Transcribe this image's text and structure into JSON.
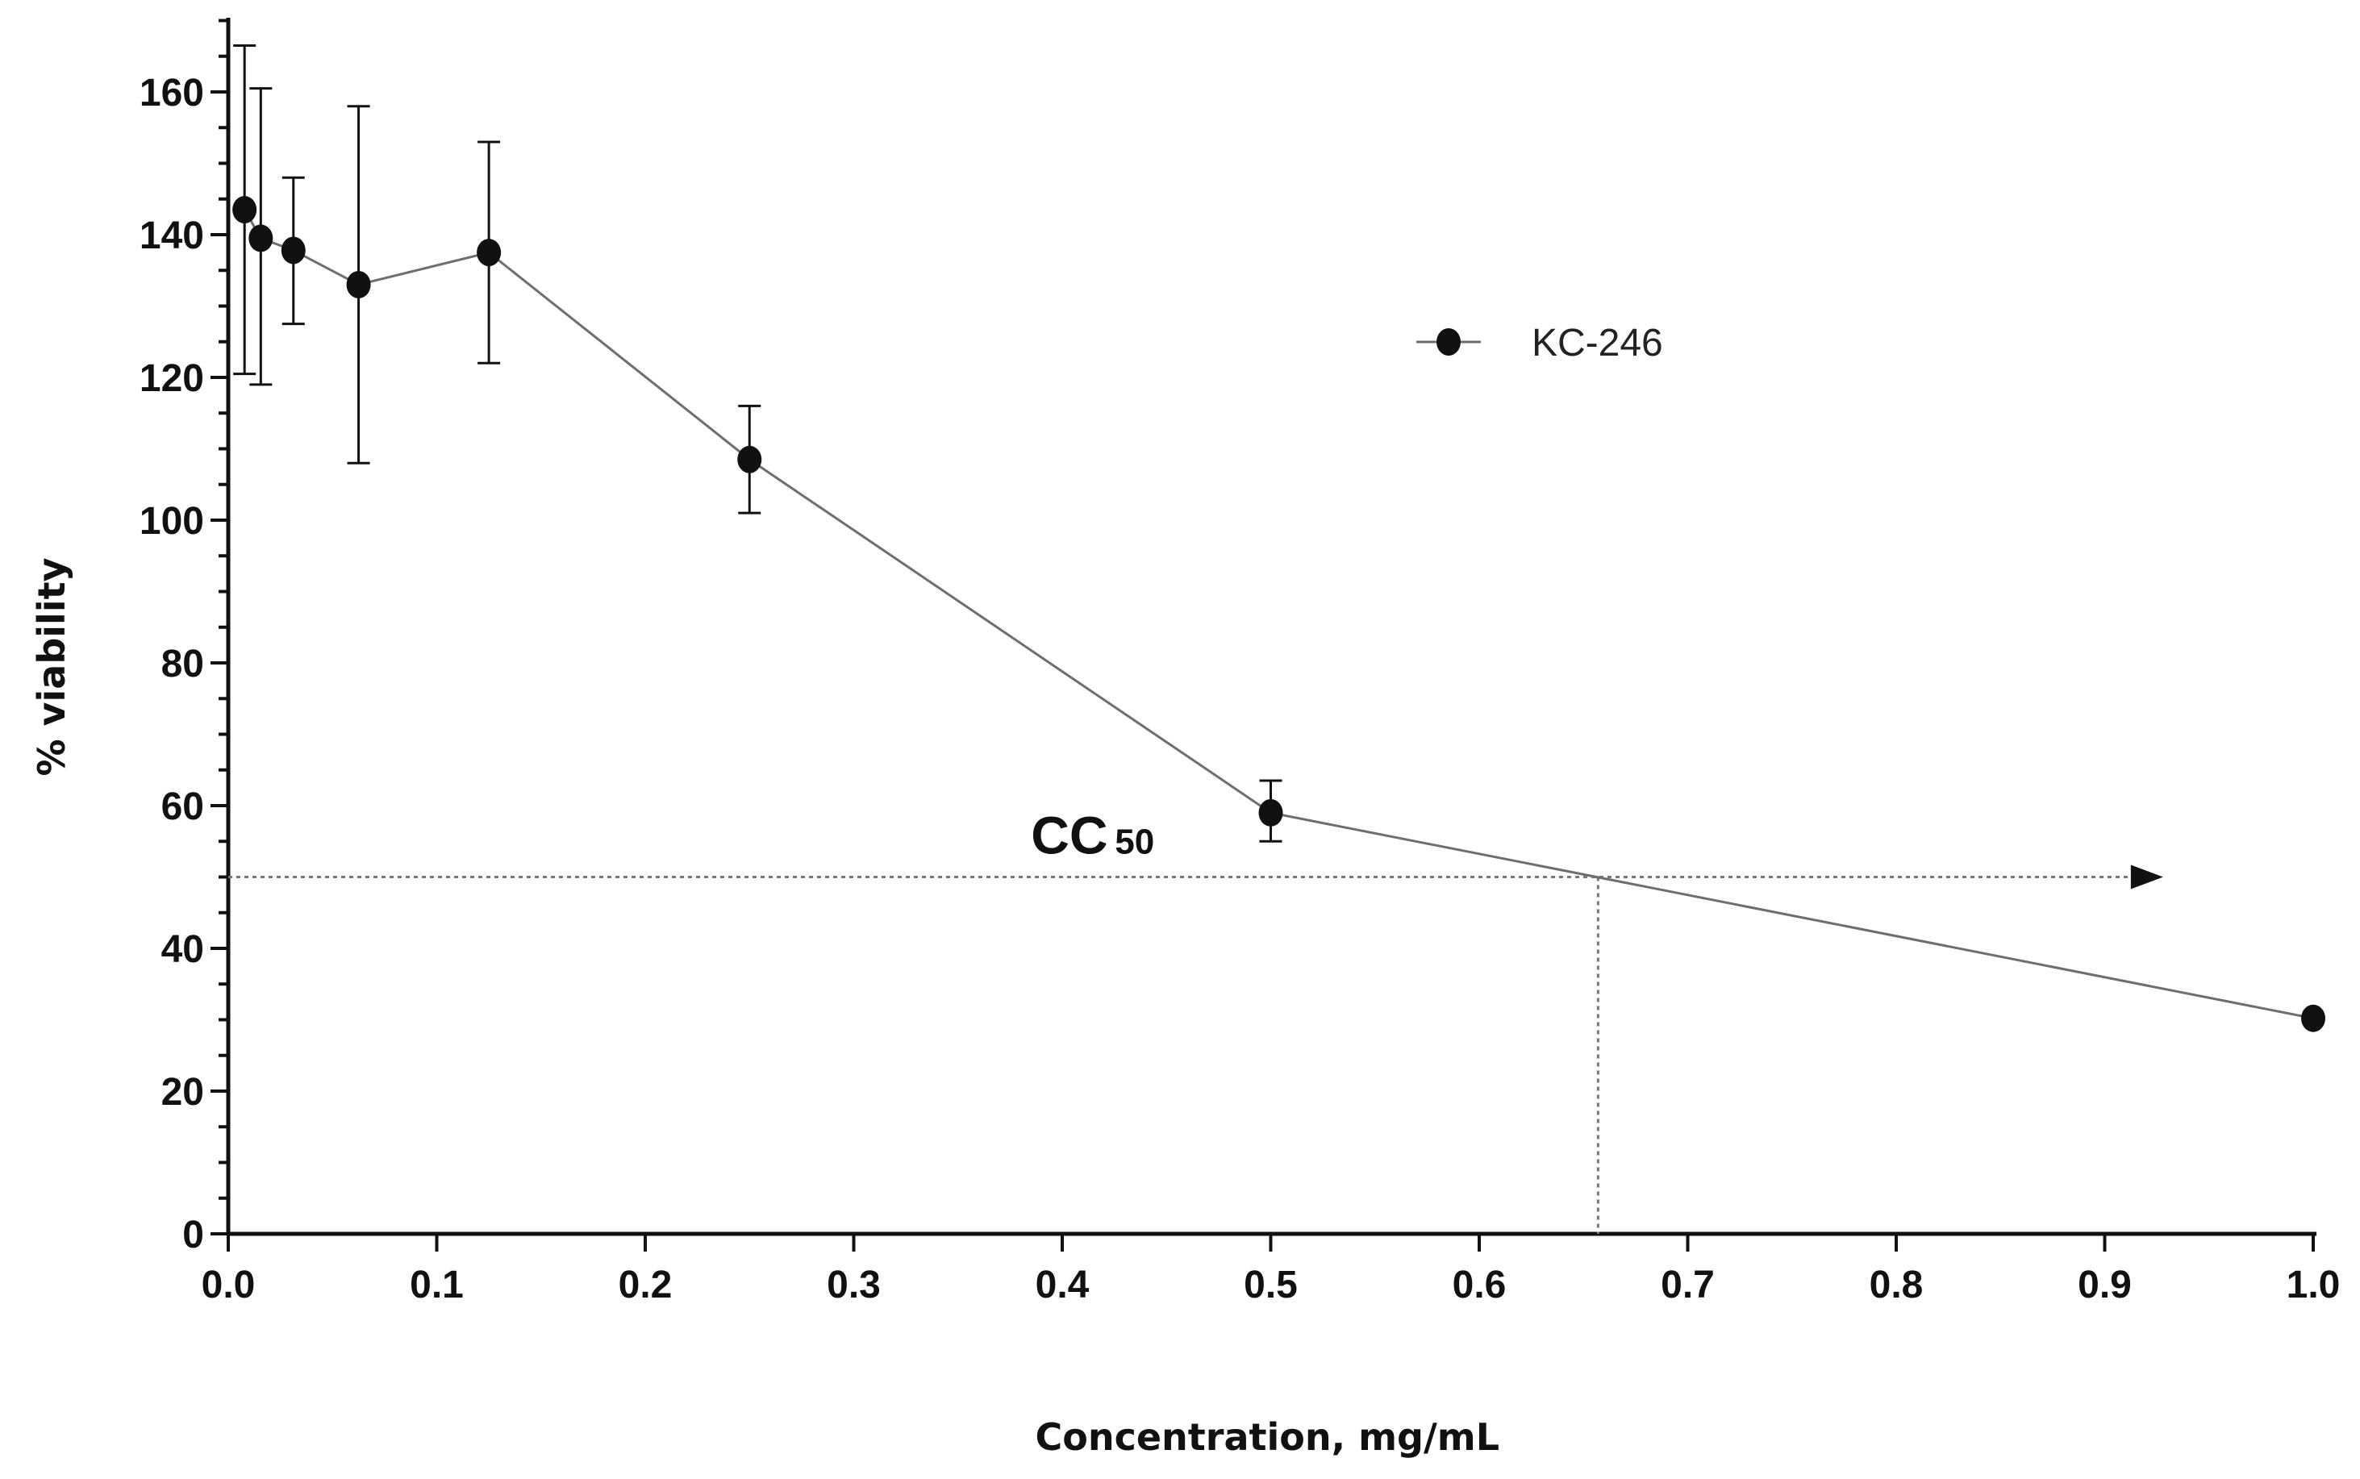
{
  "chart_data": {
    "type": "line",
    "title": "",
    "xlabel": "Concentration, mg/mL",
    "ylabel": "% viability",
    "xlim": [
      0.0,
      1.0
    ],
    "ylim": [
      0,
      170
    ],
    "x_ticks": [
      0.0,
      0.1,
      0.2,
      0.3,
      0.4,
      0.5,
      0.6,
      0.7,
      0.8,
      0.9,
      1.0
    ],
    "x_tick_labels": [
      "0.0",
      "0.1",
      "0.2",
      "0.3",
      "0.4",
      "0.5",
      "0.6",
      "0.7",
      "0.8",
      "0.9",
      "1.0"
    ],
    "y_ticks": [
      0,
      20,
      40,
      60,
      80,
      100,
      120,
      140,
      160
    ],
    "y_tick_labels": [
      "0",
      "20",
      "40",
      "60",
      "80",
      "100",
      "120",
      "140",
      "160"
    ],
    "y_minor_step": 5,
    "grid": false,
    "legend_position": "top-right",
    "series": [
      {
        "name": "KC-246",
        "marker": "filled-circle",
        "color": "#111111",
        "line_color": "#6e6e6e",
        "x": [
          0.0078,
          0.0156,
          0.03125,
          0.0625,
          0.125,
          0.25,
          0.5,
          1.0
        ],
        "y": [
          143.5,
          139.5,
          137.8,
          133.0,
          137.5,
          108.5,
          59.0,
          30.2
        ],
        "err_upper": [
          166.5,
          160.5,
          148.0,
          158.0,
          153.0,
          116.0,
          63.5,
          null
        ],
        "err_lower": [
          120.5,
          119.0,
          127.5,
          108.0,
          122.0,
          101.0,
          55.0,
          null
        ]
      }
    ],
    "annotations": {
      "cc50_label": "CC",
      "cc50_subscript": "50",
      "cc50_y": 50,
      "cc50_x": 0.657,
      "cc50_arrow_x_end": 0.928
    }
  }
}
